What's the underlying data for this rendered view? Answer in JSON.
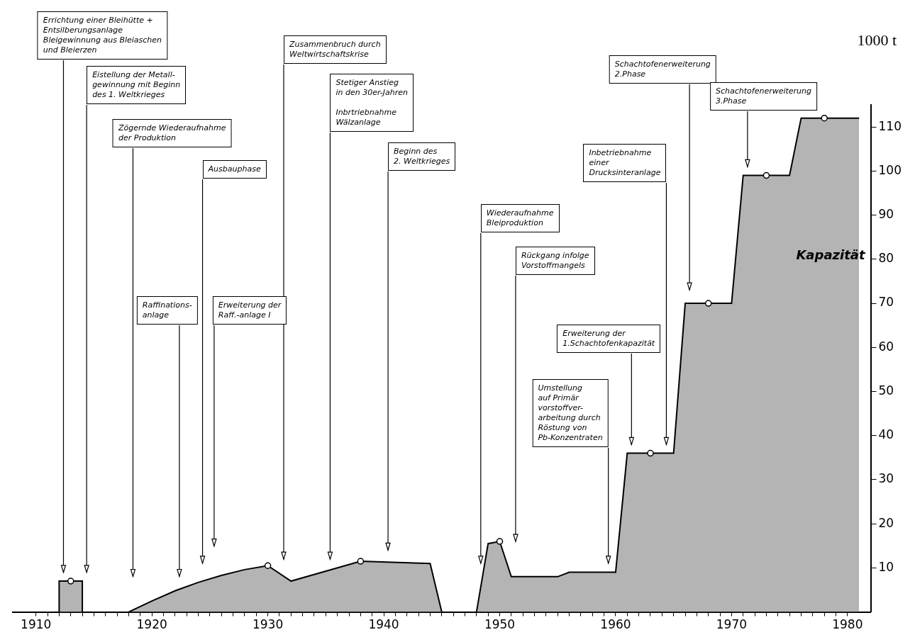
{
  "chart_data": {
    "type": "area",
    "ylabel": "1000 t",
    "xlim": [
      1908,
      1982
    ],
    "ylim": [
      0,
      115
    ],
    "xticks": [
      1910,
      {
        "value": 1911,
        "label": null
      },
      {
        "value": 1912,
        "label": null
      },
      {
        "value": 1913,
        "label": null
      },
      {
        "value": 1914,
        "label": null
      },
      {
        "value": 1915,
        "label": null
      },
      {
        "value": 1916,
        "label": null
      },
      {
        "value": 1917,
        "label": null
      },
      {
        "value": 1918,
        "label": null
      },
      {
        "value": 1919,
        "label": null
      },
      1920,
      {
        "value": 1921,
        "label": null
      },
      {
        "value": 1922,
        "label": null
      },
      {
        "value": 1923,
        "label": null
      },
      {
        "value": 1924,
        "label": null
      },
      {
        "value": 1925,
        "label": null
      },
      {
        "value": 1926,
        "label": null
      },
      {
        "value": 1927,
        "label": null
      },
      {
        "value": 1928,
        "label": null
      },
      {
        "value": 1929,
        "label": null
      },
      1930,
      {
        "value": 1931,
        "label": null
      },
      {
        "value": 1932,
        "label": null
      },
      {
        "value": 1933,
        "label": null
      },
      {
        "value": 1934,
        "label": null
      },
      {
        "value": 1935,
        "label": null
      },
      {
        "value": 1936,
        "label": null
      },
      {
        "value": 1937,
        "label": null
      },
      {
        "value": 1938,
        "label": null
      },
      {
        "value": 1939,
        "label": null
      },
      1940,
      {
        "value": 1941,
        "label": null
      },
      {
        "value": 1942,
        "label": null
      },
      {
        "value": 1943,
        "label": null
      },
      {
        "value": 1944,
        "label": null
      },
      {
        "value": 1945,
        "label": null
      },
      {
        "value": 1946,
        "label": null
      },
      {
        "value": 1947,
        "label": null
      },
      {
        "value": 1948,
        "label": null
      },
      {
        "value": 1949,
        "label": null
      },
      1950,
      {
        "value": 1951,
        "label": null
      },
      {
        "value": 1952,
        "label": null
      },
      {
        "value": 1953,
        "label": null
      },
      {
        "value": 1954,
        "label": null
      },
      {
        "value": 1955,
        "label": null
      },
      {
        "value": 1956,
        "label": null
      },
      {
        "value": 1957,
        "label": null
      },
      {
        "value": 1958,
        "label": null
      },
      {
        "value": 1959,
        "label": null
      },
      1960,
      {
        "value": 1961,
        "label": null
      },
      {
        "value": 1962,
        "label": null
      },
      {
        "value": 1963,
        "label": null
      },
      {
        "value": 1964,
        "label": null
      },
      {
        "value": 1965,
        "label": null
      },
      {
        "value": 1966,
        "label": null
      },
      {
        "value": 1967,
        "label": null
      },
      {
        "value": 1968,
        "label": null
      },
      {
        "value": 1969,
        "label": null
      },
      1970,
      {
        "value": 1971,
        "label": null
      },
      {
        "value": 1972,
        "label": null
      },
      {
        "value": 1973,
        "label": null
      },
      {
        "value": 1974,
        "label": null
      },
      {
        "value": 1975,
        "label": null
      },
      {
        "value": 1976,
        "label": null
      },
      {
        "value": 1977,
        "label": null
      },
      {
        "value": 1978,
        "label": null
      },
      {
        "value": 1979,
        "label": null
      },
      1980
    ],
    "yticks": [
      10,
      20,
      30,
      40,
      50,
      60,
      70,
      80,
      90,
      100,
      110
    ],
    "grid": false,
    "legend": false,
    "series": [
      {
        "name": "Kapazität",
        "color": "#b4b4b4",
        "x": [
          1912,
          1912,
          1914,
          1914,
          1916,
          1918,
          1920,
          1922,
          1924,
          1926,
          1928,
          1930,
          1932,
          1938,
          1944,
          1945,
          1946,
          1948,
          1949,
          1950,
          1951,
          1955,
          1956,
          1960,
          1961,
          1965,
          1966,
          1970,
          1971,
          1975,
          1976,
          1981
        ],
        "values": [
          0,
          7,
          7,
          0,
          null,
          0,
          2.5,
          4.8,
          6.7,
          8.3,
          9.6,
          10.5,
          7,
          11.5,
          11,
          0,
          null,
          0,
          15.5,
          16,
          8,
          8,
          9,
          9,
          36,
          36,
          70,
          70,
          99,
          99,
          112,
          112
        ]
      },
      {
        "type": "scatter",
        "color": "#000000",
        "marker": "circle",
        "x": [
          1913,
          1930,
          1938,
          1950,
          1963,
          1968,
          1973,
          1978
        ],
        "values": [
          7,
          10.5,
          11.5,
          16,
          36,
          70,
          99,
          112
        ]
      }
    ],
    "annotations": [
      "Errichtung einer Bleihütte +\nEntsilberungsanlage\nBleigewinnung aus Bleiaschen\nund Bleierzen",
      "Eistellung der Metall-\ngewinnung mit Beginn\ndes 1. Weltkrieges",
      "Zögernde Wiederaufnahme\nder Produktion",
      "Raffinations-\nanlage",
      "Ausbauphase",
      "Erweiterung der\nRaff.-anlage I",
      "Zusammenbruch durch\nWeltwirtschaftskrise",
      "Stetiger Anstieg\nin den 30er-Jahren\n\nInbrtriebnahme\nWälzanlage",
      "Beginn des\n2. Weltkrieges",
      "Wiederaufnahme\nBleiproduktion",
      "Rückgang infolge\nVorstoffmangels",
      "Umstellung\nauf Primär\nvorstoffver-\narbeitung durch\nRöstung von\nPb-Konzentraten",
      "Erweiterung der\n1.Schachtofenkapazität",
      "Inbetriebnahme\neiner\nDrucksinteranlage",
      "Schachtofenerweiterung\n2.Phase",
      "Schachtofenerweiterung\n3.Phase"
    ]
  }
}
